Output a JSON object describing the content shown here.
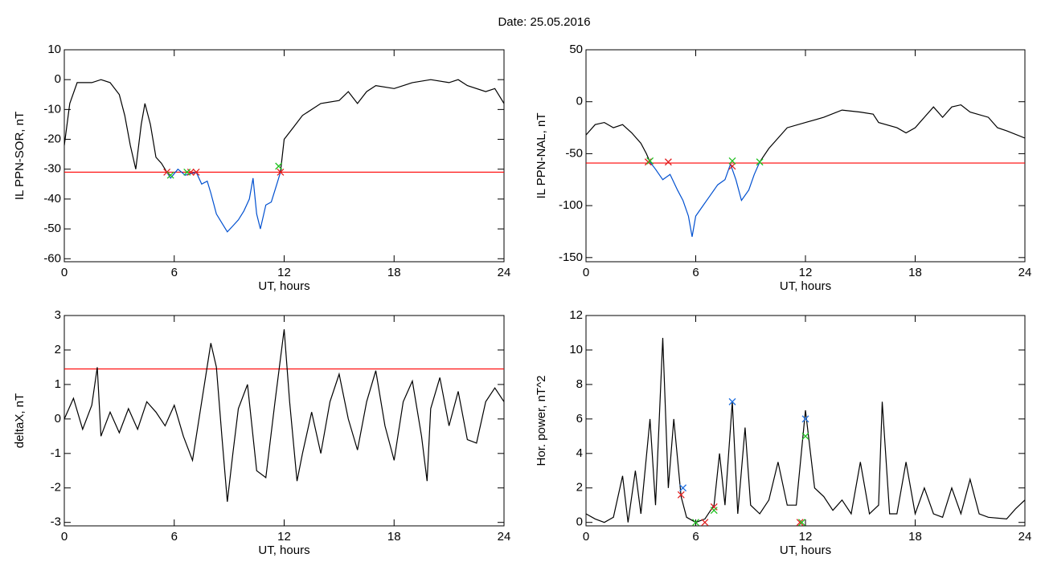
{
  "title": "Date:  25.05.2016",
  "chart_data": [
    {
      "type": "line",
      "xlabel": "UT, hours",
      "ylabel": "IL PPN-SOR, nT",
      "xlim": [
        0,
        24
      ],
      "xticks": [
        0,
        6,
        12,
        18,
        24
      ],
      "ylim": [
        -61,
        10
      ],
      "yticks": [
        10,
        0,
        -10,
        -20,
        -30,
        -40,
        -50,
        -60
      ],
      "series": [
        {
          "color": "#000000",
          "x": [
            0,
            0.3,
            0.7,
            1.5,
            2,
            2.5,
            3,
            3.3,
            3.6,
            3.9,
            4.2,
            4.4,
            4.7,
            5,
            5.3,
            5.6,
            8.5,
            11.8,
            12,
            12.5,
            13,
            14,
            15,
            15.5,
            16,
            16.5,
            17,
            18,
            19,
            20,
            21,
            21.5,
            22,
            23,
            23.5,
            24
          ],
          "values": [
            -22,
            -8,
            -1,
            -1,
            0,
            -1,
            -5,
            -12,
            -22,
            -30,
            -15,
            -8,
            -15,
            -26,
            -28,
            -31,
            null,
            -31,
            -20,
            -16,
            -12,
            -8,
            -7,
            -4,
            -8,
            -4,
            -2,
            -3,
            -1,
            0,
            -1,
            0,
            -2,
            -4,
            -3,
            -8
          ]
        },
        {
          "color": "#0050d0",
          "x": [
            5.6,
            5.8,
            6.2,
            6.6,
            7.2,
            7.5,
            7.8,
            8,
            8.3,
            8.6,
            8.9,
            9.2,
            9.5,
            9.8,
            10.1,
            10.3,
            10.5,
            10.7,
            11,
            11.3,
            11.6,
            11.8
          ],
          "values": [
            -31,
            -33,
            -30,
            -32,
            -31,
            -35,
            -34,
            -38,
            -45,
            -48,
            -51,
            -49,
            -47,
            -44,
            -40,
            -33,
            -45,
            -50,
            -42,
            -41,
            -35,
            -31
          ]
        }
      ],
      "hlines": [
        {
          "value": -31,
          "color": "#ff0000"
        }
      ],
      "markers": [
        {
          "symbol": "x",
          "color": "#e02020",
          "x": [
            5.6,
            6.9,
            7.2,
            11.8
          ],
          "y": [
            -31,
            -31,
            -31,
            -31
          ]
        },
        {
          "symbol": "x",
          "color": "#20c020",
          "x": [
            5.8,
            6.7,
            11.7
          ],
          "y": [
            -32,
            -31,
            -29
          ]
        }
      ]
    },
    {
      "type": "line",
      "xlabel": "UT, hours",
      "ylabel": "IL PPN-NAL, nT",
      "xlim": [
        0,
        24
      ],
      "xticks": [
        0,
        6,
        12,
        18,
        24
      ],
      "ylim": [
        -154,
        50
      ],
      "yticks": [
        50,
        0,
        -50,
        -100,
        -150
      ],
      "series": [
        {
          "color": "#000000",
          "x": [
            0,
            0.5,
            1,
            1.5,
            2,
            2.5,
            3,
            3.3,
            3.5,
            6,
            9.5,
            10,
            10.5,
            11,
            12,
            13,
            14,
            15,
            15.7,
            16,
            17,
            17.5,
            18,
            18.5,
            19,
            19.5,
            20,
            20.5,
            21,
            22,
            22.5,
            23,
            24
          ],
          "values": [
            -32,
            -22,
            -20,
            -25,
            -22,
            -30,
            -40,
            -50,
            -58,
            null,
            -58,
            -45,
            -35,
            -25,
            -20,
            -15,
            -8,
            -10,
            -12,
            -20,
            -25,
            -30,
            -25,
            -15,
            -5,
            -15,
            -5,
            -3,
            -10,
            -15,
            -25,
            -28,
            -35
          ]
        },
        {
          "color": "#0050d0",
          "x": [
            3.5,
            3.8,
            4.2,
            4.6,
            5,
            5.3,
            5.6,
            5.8,
            6,
            6.4,
            6.8,
            7.2,
            7.6,
            7.9,
            8.2,
            8.5,
            8.9,
            9.2,
            9.5
          ],
          "values": [
            -58,
            -65,
            -75,
            -70,
            -85,
            -95,
            -110,
            -130,
            -110,
            -100,
            -90,
            -80,
            -75,
            -60,
            -75,
            -95,
            -85,
            -70,
            -58
          ]
        }
      ],
      "hlines": [
        {
          "value": -59,
          "color": "#ff0000"
        }
      ],
      "markers": [
        {
          "symbol": "x",
          "color": "#e02020",
          "x": [
            3.4,
            4.5,
            8
          ],
          "y": [
            -58,
            -58,
            -62
          ]
        },
        {
          "symbol": "x",
          "color": "#20c020",
          "x": [
            3.5,
            8,
            9.5
          ],
          "y": [
            -57,
            -57,
            -58
          ]
        }
      ]
    },
    {
      "type": "line",
      "xlabel": "UT, hours",
      "ylabel": "deltaX, nT",
      "xlim": [
        0,
        24
      ],
      "xticks": [
        0,
        6,
        12,
        18,
        24
      ],
      "ylim": [
        -3.1,
        3
      ],
      "yticks": [
        3,
        2,
        1,
        0,
        -1,
        -2,
        -3
      ],
      "series": [
        {
          "color": "#000000",
          "x": [
            0,
            0.5,
            1,
            1.5,
            1.8,
            2,
            2.5,
            3,
            3.5,
            4,
            4.5,
            5,
            5.5,
            6,
            6.5,
            7,
            7.5,
            8,
            8.3,
            8.6,
            8.9,
            9.2,
            9.5,
            10,
            10.5,
            11,
            11.5,
            12,
            12.3,
            12.7,
            13,
            13.5,
            14,
            14.5,
            15,
            15.5,
            16,
            16.5,
            17,
            17.5,
            18,
            18.5,
            19,
            19.5,
            19.8,
            20,
            20.5,
            21,
            21.5,
            22,
            22.5,
            23,
            23.5,
            24
          ],
          "values": [
            0,
            0.6,
            -0.3,
            0.4,
            1.5,
            -0.5,
            0.2,
            -0.4,
            0.3,
            -0.3,
            0.5,
            0.2,
            -0.2,
            0.4,
            -0.5,
            -1.2,
            0.5,
            2.2,
            1.5,
            -0.5,
            -2.4,
            -1,
            0.3,
            1,
            -1.5,
            -1.7,
            0.5,
            2.6,
            0.5,
            -1.8,
            -1,
            0.2,
            -1,
            0.5,
            1.3,
            0,
            -0.9,
            0.5,
            1.4,
            -0.2,
            -1.2,
            0.5,
            1.1,
            -0.5,
            -1.8,
            0.3,
            1.2,
            -0.2,
            0.8,
            -0.6,
            -0.7,
            0.5,
            0.9,
            0.5
          ]
        }
      ],
      "hlines": [
        {
          "value": 1.45,
          "color": "#ff0000"
        }
      ],
      "markers": []
    },
    {
      "type": "line",
      "xlabel": "UT, hours",
      "ylabel": "Hor. power, nT^2",
      "xlim": [
        0,
        24
      ],
      "xticks": [
        0,
        6,
        12,
        18,
        24
      ],
      "ylim": [
        -0.2,
        12
      ],
      "yticks": [
        12,
        10,
        8,
        6,
        4,
        2,
        0
      ],
      "series": [
        {
          "color": "#000000",
          "x": [
            0,
            0.5,
            1,
            1.5,
            2,
            2.3,
            2.7,
            3,
            3.5,
            3.8,
            4.2,
            4.5,
            4.8,
            5.2,
            5.5,
            6,
            6.5,
            7,
            7.3,
            7.6,
            8,
            8.3,
            8.7,
            9,
            9.5,
            10,
            10.5,
            11,
            11.5,
            12,
            12.5,
            13,
            13.5,
            14,
            14.5,
            15,
            15.5,
            16,
            16.2,
            16.6,
            17,
            17.5,
            18,
            18.5,
            19,
            19.5,
            20,
            20.5,
            21,
            21.5,
            22,
            23,
            23.5,
            24
          ],
          "values": [
            0.5,
            0.2,
            0,
            0.3,
            2.7,
            0,
            3,
            0.5,
            6,
            1,
            10.7,
            2,
            6,
            1.5,
            0.3,
            0,
            0.2,
            1,
            4,
            1,
            7,
            0.5,
            5.5,
            1,
            0.5,
            1.3,
            3.5,
            1,
            1,
            6.5,
            2,
            1.5,
            0.7,
            1.3,
            0.5,
            3.5,
            0.5,
            1,
            7,
            0.5,
            0.5,
            3.5,
            0.5,
            2,
            0.5,
            0.3,
            2,
            0.5,
            2.5,
            0.5,
            0.3,
            0.2,
            0.8,
            1.3
          ]
        }
      ],
      "hlines": [],
      "markers": [
        {
          "symbol": "x",
          "color": "#2070e0",
          "x": [
            5.3,
            8,
            12
          ],
          "y": [
            2,
            7,
            6
          ]
        },
        {
          "symbol": "x",
          "color": "#e02020",
          "x": [
            5.2,
            6.5,
            7,
            11.7
          ],
          "y": [
            1.6,
            0,
            0.9,
            0
          ]
        },
        {
          "symbol": "x",
          "color": "#20c020",
          "x": [
            6,
            7,
            11.8,
            12
          ],
          "y": [
            0,
            0.7,
            0,
            5
          ]
        }
      ]
    }
  ]
}
